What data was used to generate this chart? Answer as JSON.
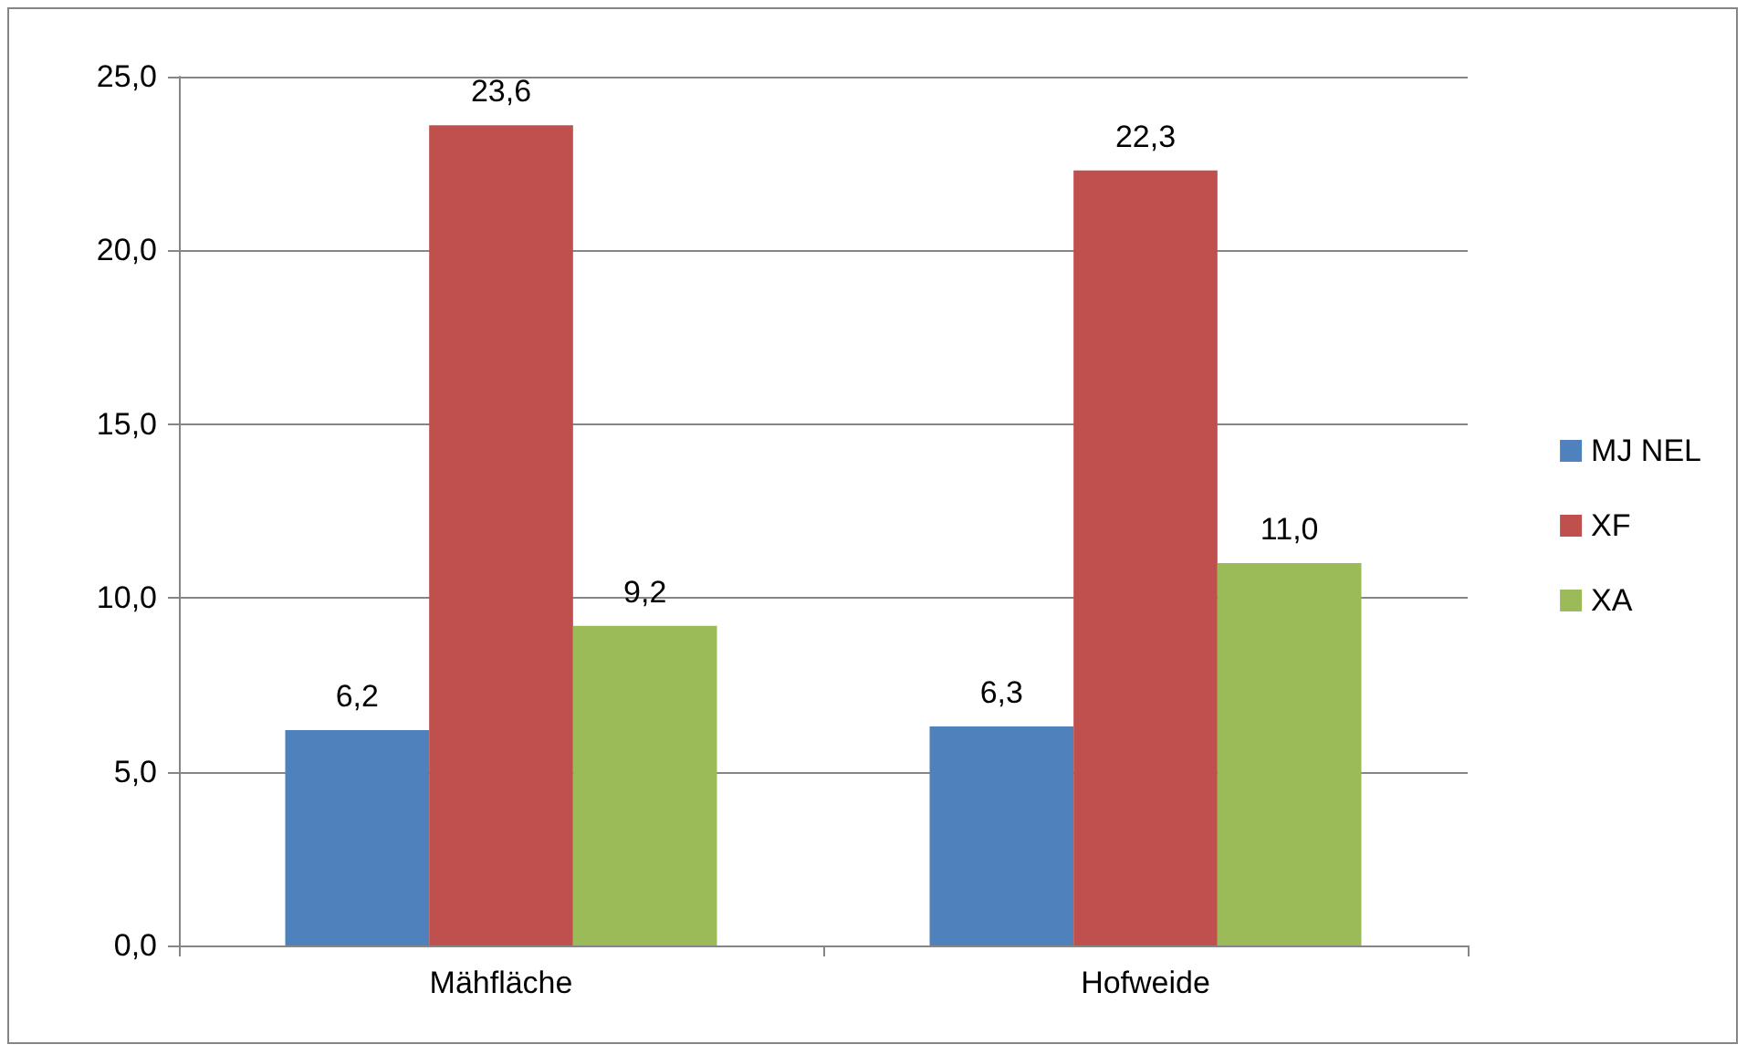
{
  "chart_data": {
    "type": "bar",
    "categories": [
      "Mähfläche",
      "Hofweide"
    ],
    "series": [
      {
        "name": "MJ NEL",
        "color": "#4f81bd",
        "values": [
          6.2,
          6.3
        ],
        "value_labels": [
          "6,2",
          "6,3"
        ]
      },
      {
        "name": "XF",
        "color": "#c0504d",
        "values": [
          23.6,
          22.3
        ],
        "value_labels": [
          "23,6",
          "22,3"
        ]
      },
      {
        "name": "XA",
        "color": "#9bbb59",
        "values": [
          9.2,
          11.0
        ],
        "value_labels": [
          "9,2",
          "11,0"
        ]
      }
    ],
    "ylim": [
      0,
      25
    ],
    "yticks": [
      {
        "value": 0,
        "label": "0,0"
      },
      {
        "value": 5,
        "label": "5,0"
      },
      {
        "value": 10,
        "label": "10,0"
      },
      {
        "value": 15,
        "label": "15,0"
      },
      {
        "value": 20,
        "label": "20,0"
      },
      {
        "value": 25,
        "label": "25,0"
      }
    ],
    "grid": "y",
    "legend": "right"
  }
}
